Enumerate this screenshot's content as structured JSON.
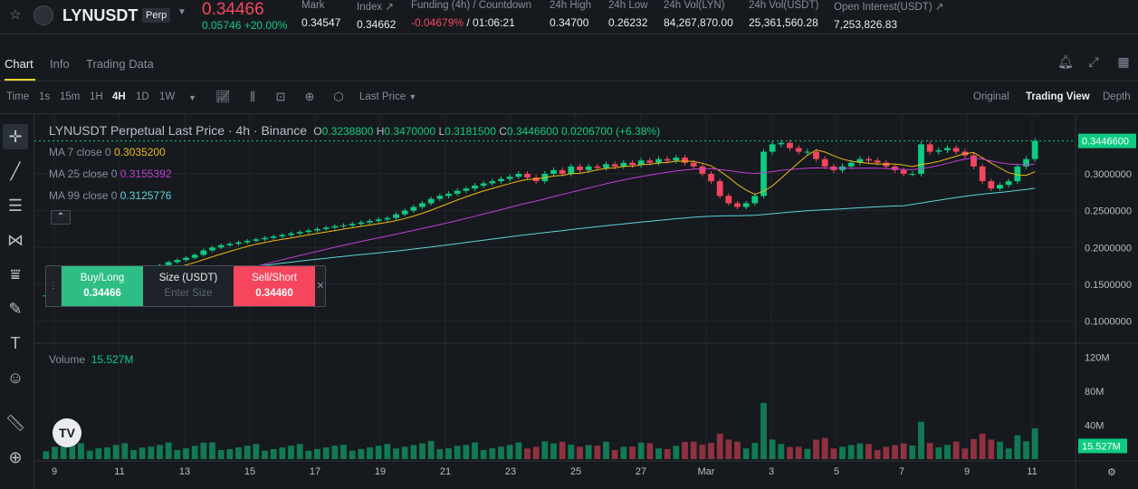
{
  "header": {
    "symbol": "LYNUSDT",
    "contract_type": "Perp",
    "last_price": "0.34466",
    "change": "0.05746 +20.00%",
    "stats": [
      {
        "label": "Mark",
        "value": "0.34547"
      },
      {
        "label": "Index ↗",
        "value": "0.34662"
      },
      {
        "label": "Funding (4h) / Countdown",
        "value_funding": "-0.04679%",
        "value_countdown": "/ 01:06:21"
      },
      {
        "label": "24h High",
        "value": "0.34700"
      },
      {
        "label": "24h Low",
        "value": "0.26232"
      },
      {
        "label": "24h Vol(LYN)",
        "value": "84,267,870.00"
      },
      {
        "label": "24h Vol(USDT)",
        "value": "25,361,560.28"
      },
      {
        "label": "Open Interest(USDT) ↗",
        "value": "7,253,826.83"
      }
    ]
  },
  "tabs": [
    "Chart",
    "Info",
    "Trading Data"
  ],
  "toolbar": {
    "time_label": "Time",
    "intervals": [
      "1s",
      "15m",
      "1H",
      "4H",
      "1D",
      "1W"
    ],
    "price_type": "Last Price",
    "views": [
      "Original",
      "Trading View",
      "Depth"
    ]
  },
  "chart_header": {
    "title": "LYNUSDT Perpetual Last Price · 4h · Binance",
    "open_label": "O",
    "open": "0.3238800",
    "high_label": "H",
    "high": "0.3470000",
    "low_label": "L",
    "low": "0.3181500",
    "close_label": "C",
    "close": "0.3446600",
    "change": "0.0206700 (+6.38%)"
  },
  "ma_lines": [
    {
      "label": "MA 7 close 0",
      "value": "0.3035200",
      "color": "#f0b90b"
    },
    {
      "label": "MA 25 close 0",
      "value": "0.3155392",
      "color": "#c03fd1"
    },
    {
      "label": "MA 99 close 0",
      "value": "0.3125776",
      "color": "#5ed3d8"
    }
  ],
  "order_panel": {
    "buy_label": "Buy/Long",
    "buy_price": "0.34466",
    "size_label": "Size (USDT)",
    "size_placeholder": "Enter Size",
    "sell_label": "Sell/Short",
    "sell_price": "0.34460"
  },
  "volume": {
    "label": "Volume",
    "value": "15.527M"
  },
  "price_axis": {
    "ticks": [
      "0.3000000",
      "0.2500000",
      "0.2000000",
      "0.1500000",
      "0.1000000"
    ],
    "current": "0.3446600"
  },
  "volume_axis": {
    "ticks": [
      "120M",
      "80M",
      "40M"
    ],
    "current": "15.527M"
  },
  "date_axis": [
    "9",
    "11",
    "13",
    "15",
    "17",
    "19",
    "21",
    "23",
    "25",
    "27",
    "Mar",
    "3",
    "5",
    "7",
    "9",
    "11"
  ],
  "colors": {
    "up": "#0ecb81",
    "down": "#f6465d",
    "accent": "#fcd535",
    "bg": "#161a1e"
  },
  "chart_data": {
    "type": "candlestick",
    "interval": "4h",
    "ylim": [
      0.07,
      0.37
    ],
    "volume_ylim": [
      0,
      130000000
    ],
    "approx_closes": [
      0.135,
      0.14,
      0.143,
      0.147,
      0.15,
      0.152,
      0.155,
      0.157,
      0.16,
      0.163,
      0.166,
      0.17,
      0.173,
      0.176,
      0.18,
      0.183,
      0.186,
      0.19,
      0.196,
      0.2,
      0.203,
      0.205,
      0.207,
      0.209,
      0.211,
      0.213,
      0.215,
      0.217,
      0.219,
      0.221,
      0.223,
      0.225,
      0.227,
      0.229,
      0.23,
      0.232,
      0.234,
      0.236,
      0.238,
      0.24,
      0.245,
      0.25,
      0.255,
      0.26,
      0.266,
      0.27,
      0.273,
      0.277,
      0.28,
      0.284,
      0.287,
      0.29,
      0.293,
      0.296,
      0.3,
      0.295,
      0.29,
      0.3,
      0.305,
      0.3,
      0.31,
      0.305,
      0.31,
      0.308,
      0.313,
      0.31,
      0.315,
      0.312,
      0.318,
      0.315,
      0.32,
      0.318,
      0.322,
      0.315,
      0.31,
      0.3,
      0.29,
      0.27,
      0.26,
      0.255,
      0.26,
      0.27,
      0.33,
      0.34,
      0.342,
      0.335,
      0.33,
      0.33,
      0.32,
      0.31,
      0.305,
      0.31,
      0.315,
      0.32,
      0.318,
      0.315,
      0.31,
      0.305,
      0.3,
      0.3,
      0.34,
      0.33,
      0.332,
      0.335,
      0.33,
      0.325,
      0.31,
      0.29,
      0.28,
      0.285,
      0.29,
      0.31,
      0.32,
      0.3447
    ]
  }
}
